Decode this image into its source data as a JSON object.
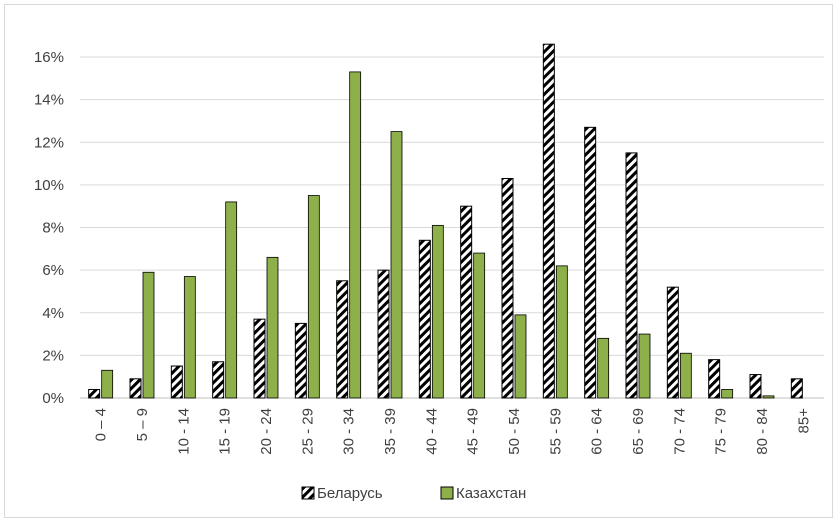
{
  "chart_data": {
    "type": "bar",
    "categories": [
      "0 – 4",
      "5 – 9",
      "10 - 14",
      "15 - 19",
      "20 - 24",
      "25 - 29",
      "30 - 34",
      "35 - 39",
      "40 - 44",
      "45 - 49",
      "50 - 54",
      "55 - 59",
      "60 - 64",
      "65 - 69",
      "70 - 74",
      "75 - 79",
      "80 - 84",
      "85+"
    ],
    "series": [
      {
        "name": "Беларусь",
        "pattern": "hatched",
        "values": [
          0.4,
          0.9,
          1.5,
          1.7,
          3.7,
          3.5,
          5.5,
          6.0,
          7.4,
          9.0,
          10.3,
          16.6,
          12.7,
          11.5,
          5.2,
          1.8,
          1.1,
          0.9
        ]
      },
      {
        "name": "Казахстан",
        "color": "#8db04a",
        "values": [
          1.3,
          5.9,
          5.7,
          9.2,
          6.6,
          9.5,
          15.3,
          12.5,
          8.1,
          6.8,
          3.9,
          6.2,
          2.8,
          3.0,
          2.1,
          0.4,
          0.1,
          0.0
        ]
      }
    ],
    "yticks": [
      "0%",
      "2%",
      "4%",
      "6%",
      "8%",
      "10%",
      "12%",
      "14%",
      "16%"
    ],
    "ylim": [
      0,
      16
    ],
    "ystep": 2,
    "grid": true,
    "legend_position": "bottom",
    "title": "",
    "xlabel": "",
    "ylabel": ""
  }
}
